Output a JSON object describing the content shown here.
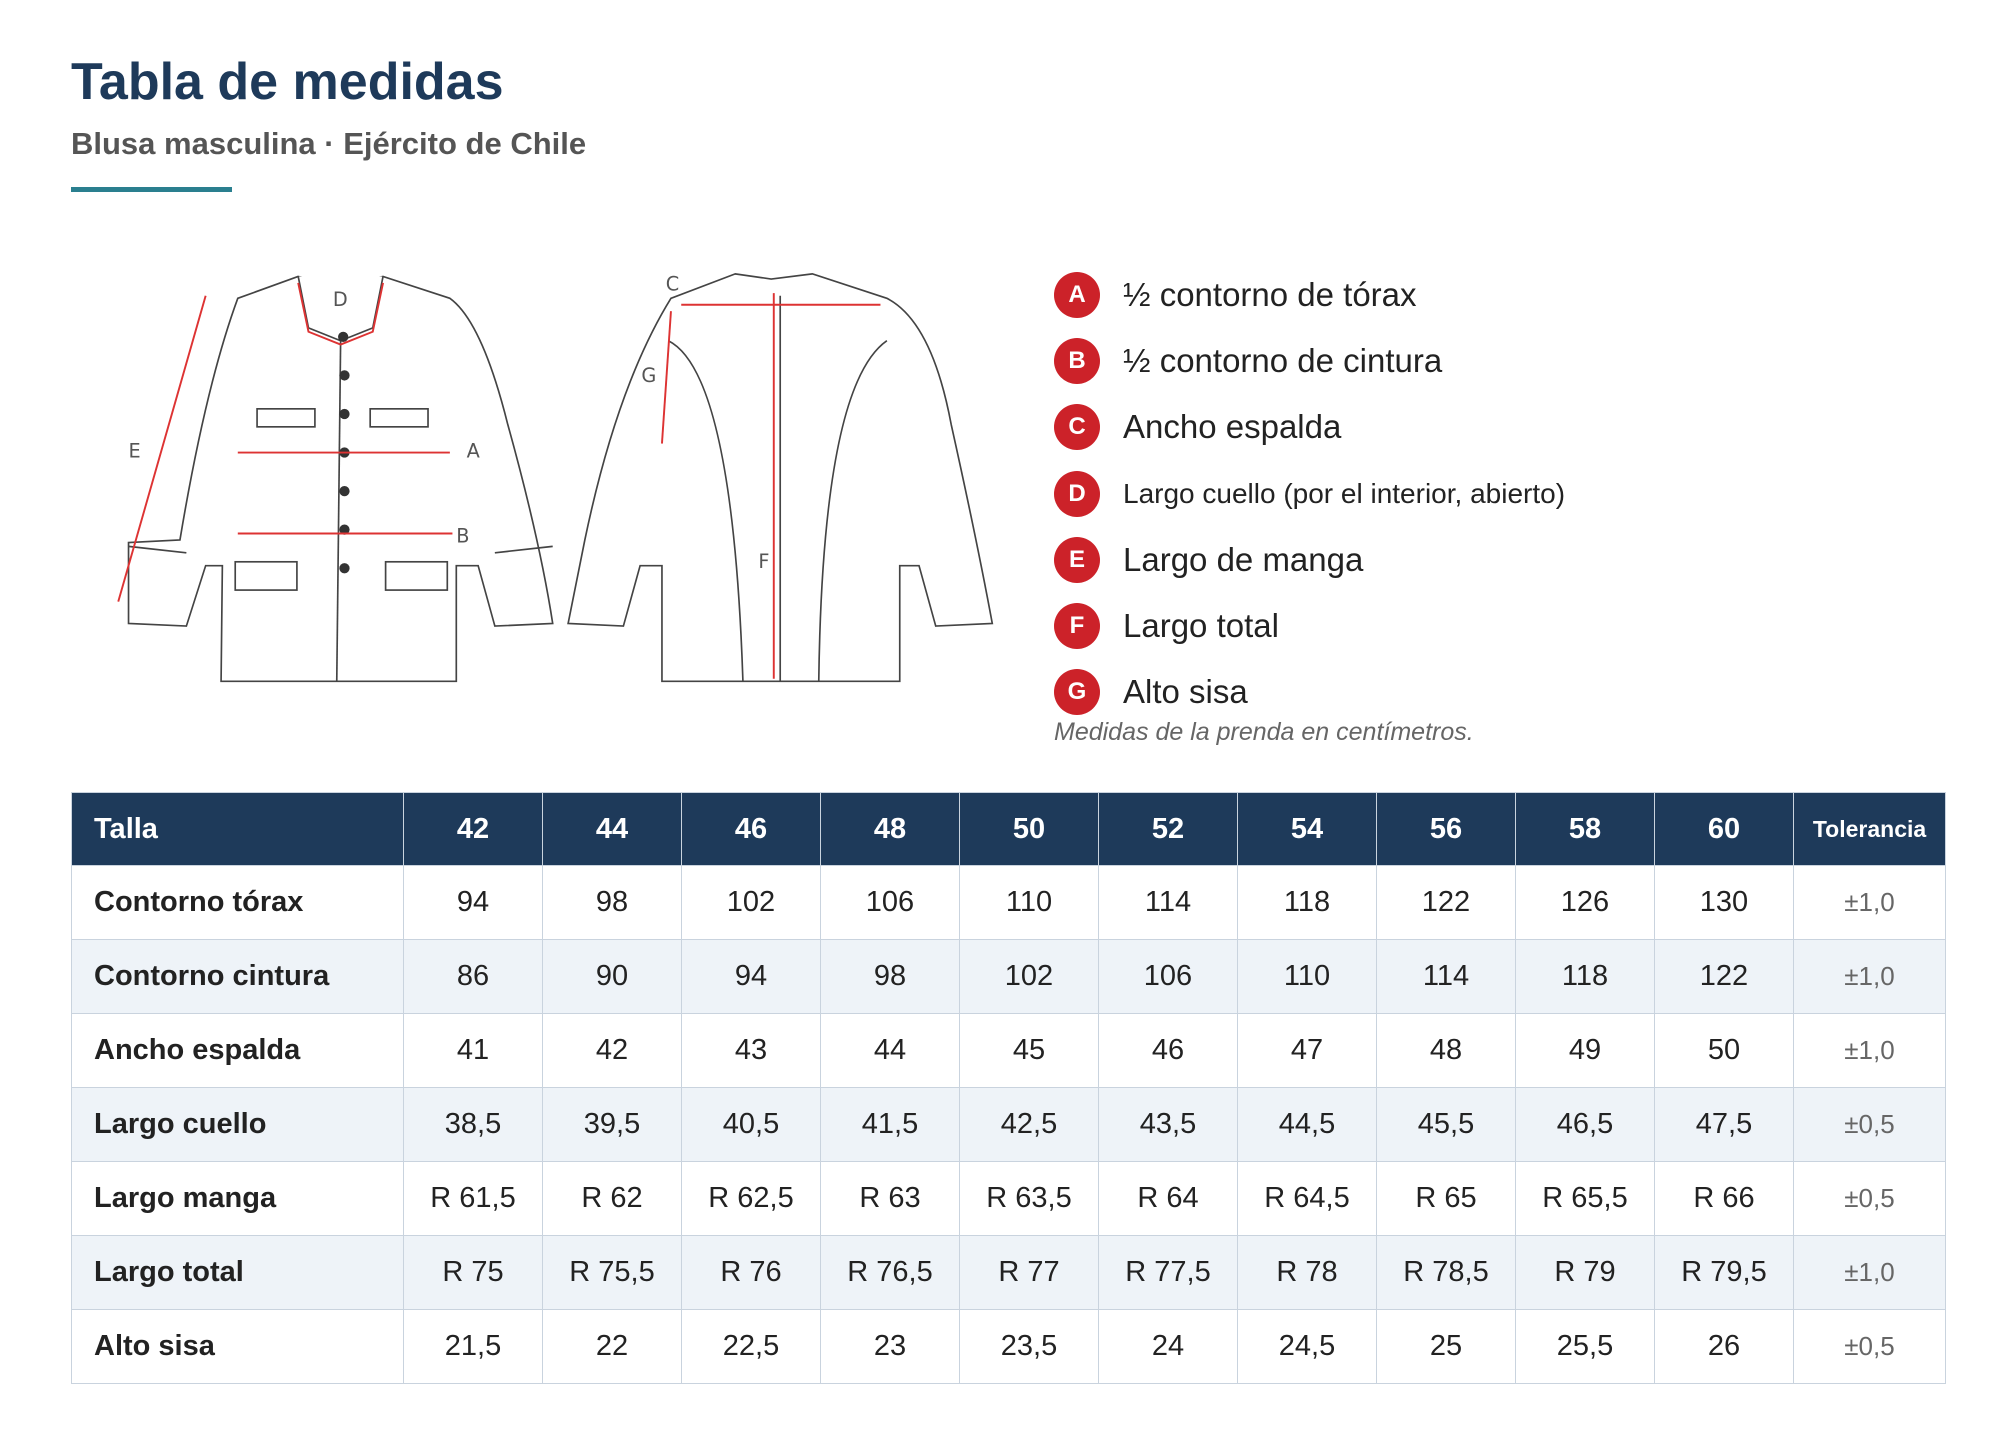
{
  "header": {
    "title": "Tabla de medidas",
    "subtitle": "Blusa masculina · Ejército de Chile"
  },
  "legend": {
    "items": [
      {
        "letter": "A",
        "label": "½ contorno de tórax"
      },
      {
        "letter": "B",
        "label": "½ contorno de cintura"
      },
      {
        "letter": "C",
        "label": "Ancho espalda"
      },
      {
        "letter": "D",
        "label": "Largo cuello (por el interior, abierto)"
      },
      {
        "letter": "E",
        "label": "Largo de manga"
      },
      {
        "letter": "F",
        "label": "Largo total"
      },
      {
        "letter": "G",
        "label": "Alto sisa"
      }
    ],
    "note": "Medidas de la prenda en centímetros."
  },
  "table": {
    "header": [
      "Talla",
      "42",
      "44",
      "46",
      "48",
      "50",
      "52",
      "54",
      "56",
      "58",
      "60",
      "Tolerancia"
    ],
    "rows": [
      [
        "Contorno tórax",
        "94",
        "98",
        "102",
        "106",
        "110",
        "114",
        "118",
        "122",
        "126",
        "130",
        "±1,0"
      ],
      [
        "Contorno cintura",
        "86",
        "90",
        "94",
        "98",
        "102",
        "106",
        "110",
        "114",
        "118",
        "122",
        "±1,0"
      ],
      [
        "Ancho espalda",
        "41",
        "42",
        "43",
        "44",
        "45",
        "46",
        "47",
        "48",
        "49",
        "50",
        "±1,0"
      ],
      [
        "Largo cuello",
        "38,5",
        "39,5",
        "40,5",
        "41,5",
        "42,5",
        "43,5",
        "44,5",
        "45,5",
        "46,5",
        "47,5",
        "±0,5"
      ],
      [
        "Largo manga",
        "R 61,5",
        "R 62",
        "R 62,5",
        "R 63",
        "R 63,5",
        "R 64",
        "R 64,5",
        "R 65",
        "R 65,5",
        "R 66",
        "±0,5"
      ],
      [
        "Largo total",
        "R 75",
        "R 75,5",
        "R 76",
        "R 76,5",
        "R 77",
        "R 77,5",
        "R 78",
        "R 78,5",
        "R 79",
        "R 79,5",
        "±1,0"
      ],
      [
        "Alto sisa",
        "21,5",
        "22",
        "22,5",
        "23",
        "23,5",
        "24",
        "24,5",
        "25",
        "25,5",
        "26",
        "±0,5"
      ]
    ]
  }
}
